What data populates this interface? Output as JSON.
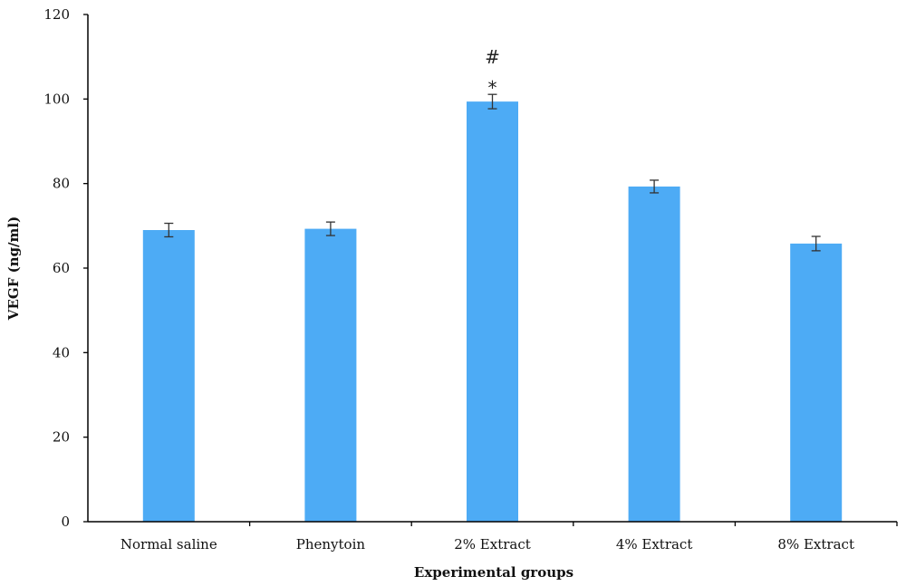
{
  "chart_data": {
    "type": "bar",
    "title": "",
    "xlabel": "Experimental groups",
    "ylabel": "VEGF (ng/ml)",
    "ylim": [
      0,
      120
    ],
    "yticks": [
      0,
      20,
      40,
      60,
      80,
      100,
      120
    ],
    "grid": false,
    "legend": "none",
    "categories": [
      "Normal saline",
      "Phenytoin",
      "2% Extract",
      "4% Extract",
      "8% Extract"
    ],
    "series": [
      {
        "values": [
          69,
          69.3,
          99.4,
          79.3,
          65.8
        ],
        "errors": [
          1.6,
          1.6,
          1.7,
          1.5,
          1.7
        ],
        "color": "#4DABF5"
      }
    ],
    "annotations": [
      {
        "category": "2% Extract",
        "lines": [
          "#",
          "*"
        ]
      }
    ],
    "colors": {
      "bar": "#4DABF5",
      "error_bar": "#333333",
      "axis": "#000000"
    }
  }
}
